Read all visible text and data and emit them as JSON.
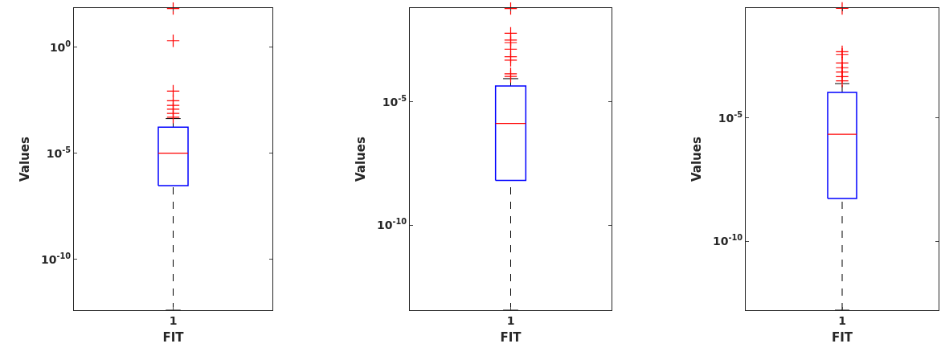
{
  "chart_data": [
    {
      "type": "box",
      "xlabel": "FIT",
      "ylabel": "Values",
      "categories": [
        "1"
      ],
      "log": true,
      "marker": "cross",
      "ylim": [
        4e-13,
        70
      ],
      "yticks": [
        {
          "value": 1e-10,
          "label": "10$^{-10}$"
        },
        {
          "value": 1e-05,
          "label": "10$^{-5}$"
        },
        {
          "value": 1,
          "label": "10$^{0}$"
        }
      ],
      "series": [
        {
          "color": "#0000ff",
          "boxes": [
            {
              "low": 4e-13,
              "q1": 3e-07,
              "median": 1e-05,
              "q3": 0.00017,
              "high": 0.00043,
              "outliers": [
                66,
                2,
                0.0085,
                0.003,
                0.0018,
                0.0012,
                0.00076,
                0.0005
              ]
            }
          ]
        }
      ]
    },
    {
      "type": "box",
      "xlabel": "FIT",
      "ylabel": "Values",
      "categories": [
        "1"
      ],
      "log": true,
      "marker": "cross",
      "ylim": [
        3.5e-14,
        0.066
      ],
      "yticks": [
        {
          "value": 1e-10,
          "label": "10$^{-10}$"
        },
        {
          "value": 1e-05,
          "label": "10$^{-5}$"
        }
      ],
      "series": [
        {
          "color": "#0000ff",
          "boxes": [
            {
              "low": 3.5e-14,
              "q1": 6.6e-09,
              "median": 1.35e-06,
              "q3": 4.5e-05,
              "high": 8.9e-05,
              "outliers": [
                0.063,
                0.0062,
                0.0033,
                0.0026,
                0.0014,
                0.00069,
                0.0005,
                0.00014,
                0.00011
              ]
            }
          ]
        }
      ]
    },
    {
      "type": "box",
      "xlabel": "FIT",
      "ylabel": "Values",
      "categories": [
        "1"
      ],
      "log": true,
      "marker": "cross",
      "ylim": [
        1.6e-13,
        0.29
      ],
      "yticks": [
        {
          "value": 1e-10,
          "label": "10$^{-10}$"
        },
        {
          "value": 1e-05,
          "label": "10$^{-5}$"
        }
      ],
      "series": [
        {
          "color": "#0000ff",
          "boxes": [
            {
              "low": 1.6e-13,
              "q1": 5.4e-09,
              "median": 2.2e-06,
              "q3": 0.00011,
              "high": 0.00025,
              "outliers": [
                0.28,
                0.0049,
                0.0038,
                0.0017,
                0.0011,
                0.00074,
                0.00048,
                0.00032
              ]
            }
          ]
        }
      ]
    }
  ]
}
